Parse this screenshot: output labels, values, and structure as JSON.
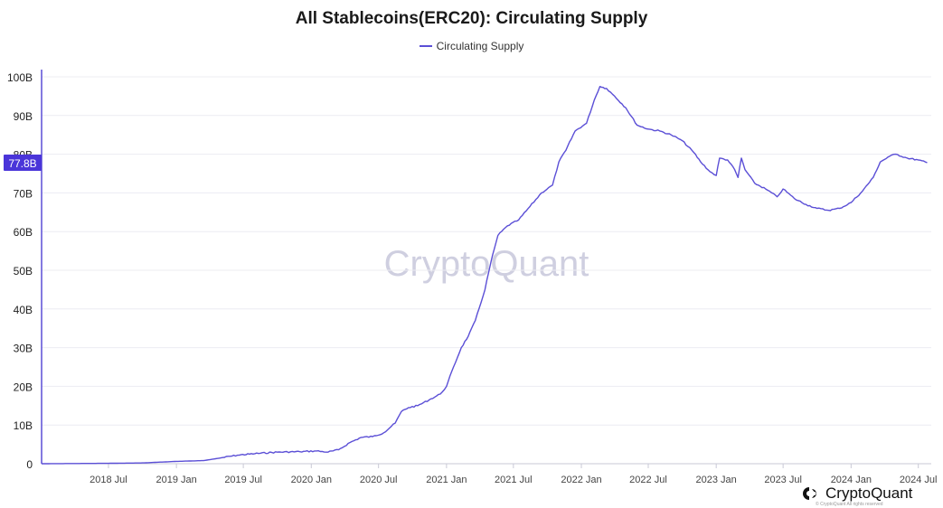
{
  "chart_data": {
    "type": "line",
    "title": "All Stablecoins(ERC20): Circulating Supply",
    "legend": [
      "Circulating Supply"
    ],
    "series": [
      {
        "name": "Circulating Supply",
        "color": "#5b4fd6",
        "points": [
          [
            "2018-01-01",
            0.0
          ],
          [
            "2018-07-01",
            0.1
          ],
          [
            "2018-10-01",
            0.2
          ],
          [
            "2019-01-01",
            0.6
          ],
          [
            "2019-03-15",
            0.8
          ],
          [
            "2019-05-01",
            1.5
          ],
          [
            "2019-06-15",
            2.2
          ],
          [
            "2019-08-01",
            2.6
          ],
          [
            "2019-10-01",
            3.0
          ],
          [
            "2019-12-01",
            3.1
          ],
          [
            "2020-01-15",
            3.3
          ],
          [
            "2020-02-15",
            3.0
          ],
          [
            "2020-03-15",
            3.6
          ],
          [
            "2020-04-15",
            5.5
          ],
          [
            "2020-05-15",
            6.8
          ],
          [
            "2020-06-15",
            7.0
          ],
          [
            "2020-07-15",
            8.0
          ],
          [
            "2020-08-15",
            10.5
          ],
          [
            "2020-09-01",
            13.5
          ],
          [
            "2020-09-20",
            14.5
          ],
          [
            "2020-10-15",
            15.0
          ],
          [
            "2020-11-15",
            16.5
          ],
          [
            "2020-12-15",
            18.0
          ],
          [
            "2021-01-01",
            20.0
          ],
          [
            "2021-01-20",
            25.0
          ],
          [
            "2021-02-10",
            30.0
          ],
          [
            "2021-03-01",
            33.0
          ],
          [
            "2021-03-20",
            37.0
          ],
          [
            "2021-04-15",
            45.0
          ],
          [
            "2021-05-01",
            52.0
          ],
          [
            "2021-05-20",
            59.0
          ],
          [
            "2021-06-15",
            61.5
          ],
          [
            "2021-07-15",
            63.0
          ],
          [
            "2021-08-15",
            66.5
          ],
          [
            "2021-09-15",
            70.0
          ],
          [
            "2021-10-15",
            72.0
          ],
          [
            "2021-11-01",
            78.0
          ],
          [
            "2021-11-20",
            81.0
          ],
          [
            "2021-12-15",
            86.0
          ],
          [
            "2022-01-15",
            88.0
          ],
          [
            "2022-02-05",
            94.0
          ],
          [
            "2022-02-20",
            97.5
          ],
          [
            "2022-03-10",
            97.0
          ],
          [
            "2022-04-01",
            95.0
          ],
          [
            "2022-05-01",
            92.0
          ],
          [
            "2022-06-01",
            87.5
          ],
          [
            "2022-07-01",
            86.5
          ],
          [
            "2022-08-01",
            86.0
          ],
          [
            "2022-09-01",
            85.0
          ],
          [
            "2022-10-01",
            83.5
          ],
          [
            "2022-11-01",
            80.5
          ],
          [
            "2022-11-20",
            78.0
          ],
          [
            "2022-12-15",
            75.5
          ],
          [
            "2023-01-01",
            74.5
          ],
          [
            "2023-01-10",
            79.0
          ],
          [
            "2023-02-01",
            78.5
          ],
          [
            "2023-02-20",
            76.0
          ],
          [
            "2023-03-01",
            74.0
          ],
          [
            "2023-03-10",
            79.0
          ],
          [
            "2023-03-20",
            76.0
          ],
          [
            "2023-04-15",
            72.5
          ],
          [
            "2023-05-15",
            71.0
          ],
          [
            "2023-06-15",
            69.0
          ],
          [
            "2023-07-01",
            71.0
          ],
          [
            "2023-08-01",
            68.5
          ],
          [
            "2023-09-01",
            67.0
          ],
          [
            "2023-10-01",
            66.0
          ],
          [
            "2023-11-01",
            65.5
          ],
          [
            "2023-12-01",
            66.0
          ],
          [
            "2024-01-01",
            67.5
          ],
          [
            "2024-02-01",
            70.5
          ],
          [
            "2024-03-01",
            74.0
          ],
          [
            "2024-03-20",
            78.0
          ],
          [
            "2024-04-15",
            79.5
          ],
          [
            "2024-05-01",
            80.0
          ],
          [
            "2024-06-01",
            79.0
          ],
          [
            "2024-07-01",
            78.5
          ],
          [
            "2024-07-25",
            77.8
          ]
        ]
      }
    ],
    "x_axis": {
      "range": [
        "2018-01-01",
        "2024-08-05"
      ],
      "ticks": [
        {
          "label": "2018 Jul",
          "date": "2018-07-01"
        },
        {
          "label": "2019 Jan",
          "date": "2019-01-01"
        },
        {
          "label": "2019 Jul",
          "date": "2019-07-01"
        },
        {
          "label": "2020 Jan",
          "date": "2020-01-01"
        },
        {
          "label": "2020 Jul",
          "date": "2020-07-01"
        },
        {
          "label": "2021 Jan",
          "date": "2021-01-01"
        },
        {
          "label": "2021 Jul",
          "date": "2021-07-01"
        },
        {
          "label": "2022 Jan",
          "date": "2022-01-01"
        },
        {
          "label": "2022 Jul",
          "date": "2022-07-01"
        },
        {
          "label": "2023 Jan",
          "date": "2023-01-01"
        },
        {
          "label": "2023 Jul",
          "date": "2023-07-01"
        },
        {
          "label": "2024 Jan",
          "date": "2024-01-01"
        },
        {
          "label": "2024 Jul",
          "date": "2024-07-01"
        }
      ]
    },
    "y_axis": {
      "range": [
        0,
        100
      ],
      "unit": "billions",
      "ticks": [
        {
          "label": "0",
          "value": 0
        },
        {
          "label": "10B",
          "value": 10
        },
        {
          "label": "20B",
          "value": 20
        },
        {
          "label": "30B",
          "value": 30
        },
        {
          "label": "40B",
          "value": 40
        },
        {
          "label": "50B",
          "value": 50
        },
        {
          "label": "60B",
          "value": 60
        },
        {
          "label": "70B",
          "value": 70
        },
        {
          "label": "80B",
          "value": 80
        },
        {
          "label": "90B",
          "value": 90
        },
        {
          "label": "100B",
          "value": 100
        }
      ],
      "gridlines": true
    },
    "current_value": {
      "label": "77.8B",
      "value": 77.8
    }
  },
  "watermark": "CryptoQuant",
  "brand": {
    "name": "CryptoQuant",
    "copyright": "© CryptoQuant All rights reserved"
  },
  "colors": {
    "line": "#5b4fd6",
    "badge": "#4a35d9",
    "grid": "#ececf2",
    "watermark": "#cfcfe0"
  }
}
